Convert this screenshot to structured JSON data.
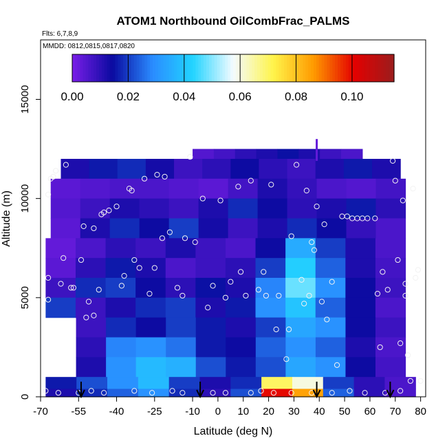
{
  "chart_data": {
    "type": "heatmap",
    "title": "ATOM1 Northbound OilCombFrac_PALMS",
    "flights_note": "Flts: 6,7,8,9",
    "dates_note": "MMDD: 0812,0815,0817,0820",
    "xlabel": "Latitude (deg N)",
    "ylabel": "Altitude (m)",
    "xlim": [
      -70,
      82
    ],
    "ylim": [
      0,
      18000
    ],
    "x_ticks": [
      "-70",
      "-55",
      "-40",
      "-25",
      "-10",
      "0",
      "10",
      "20",
      "30",
      "40",
      "50",
      "60",
      "70",
      "80"
    ],
    "x_tick_values": [
      -70,
      -55,
      -40,
      -25,
      -10,
      0,
      10,
      20,
      30,
      40,
      50,
      60,
      70,
      80
    ],
    "y_ticks": [
      "0",
      "5000",
      "10000",
      "15000"
    ],
    "y_tick_values": [
      0,
      5000,
      10000,
      15000
    ],
    "colorbar": {
      "range": [
        0,
        0.115
      ],
      "ticks": [
        "0.00",
        "0.02",
        "0.04",
        "0.06",
        "0.08",
        "0.10"
      ],
      "tick_values": [
        0,
        0.02,
        0.04,
        0.06,
        0.08,
        0.1
      ],
      "colors": [
        "#7a1ee8",
        "#0a0aa0",
        "#2a8cff",
        "#22d4ff",
        "#f4fbff",
        "#fff44a",
        "#ff9a00",
        "#e40000",
        "#9b1d1d"
      ]
    },
    "field_rows": [
      {
        "alt_range": [
          12000,
          12500
        ],
        "lat_range": [
          -10,
          57
        ],
        "values": [
          0.005,
          0.007,
          0.01,
          0.012,
          0.015,
          0.012,
          0.008,
          0.006
        ]
      },
      {
        "alt_range": [
          11000,
          12000
        ],
        "lat_range": [
          -62,
          72
        ],
        "values": [
          0.012,
          0.016,
          0.018,
          0.013,
          0.008,
          0.01,
          0.014,
          0.01,
          0.008,
          0.012,
          0.016,
          0.012
        ]
      },
      {
        "alt_range": [
          10000,
          11000
        ],
        "lat_range": [
          -66,
          74
        ],
        "values": [
          0.004,
          0.005,
          0.006,
          0.006,
          0.005,
          0.004,
          0.007,
          0.012,
          0.009,
          0.006,
          0.005,
          0.007
        ]
      },
      {
        "alt_range": [
          9000,
          10000
        ],
        "lat_range": [
          -66,
          74
        ],
        "values": [
          0.005,
          0.008,
          0.012,
          0.01,
          0.008,
          0.012,
          0.018,
          0.014,
          0.01,
          0.012,
          0.016,
          0.01
        ]
      },
      {
        "alt_range": [
          8000,
          9000
        ],
        "lat_range": [
          -66,
          74
        ],
        "values": [
          0.004,
          0.012,
          0.018,
          0.014,
          0.02,
          0.013,
          0.008,
          0.012,
          0.018,
          0.014,
          0.009,
          0.006
        ]
      },
      {
        "alt_range": [
          7000,
          8000
        ],
        "lat_range": [
          -68,
          74
        ],
        "values": [
          0.003,
          0.006,
          0.01,
          0.008,
          0.012,
          0.008,
          0.006,
          0.014,
          0.035,
          0.02,
          0.012,
          0.006
        ]
      },
      {
        "alt_range": [
          6000,
          7000
        ],
        "lat_range": [
          -68,
          74
        ],
        "values": [
          0.004,
          0.01,
          0.016,
          0.012,
          0.006,
          0.008,
          0.01,
          0.02,
          0.042,
          0.024,
          0.012,
          0.007
        ]
      },
      {
        "alt_range": [
          5000,
          6000
        ],
        "lat_range": [
          -68,
          74
        ],
        "values": [
          0.008,
          0.018,
          0.02,
          0.014,
          0.01,
          0.015,
          0.012,
          0.028,
          0.048,
          0.03,
          0.014,
          0.008
        ]
      },
      {
        "alt_range": [
          4000,
          5000
        ],
        "lat_range": [
          -68,
          74
        ],
        "values": [
          0.02,
          0.008,
          0.012,
          0.018,
          0.02,
          0.012,
          0.016,
          0.03,
          0.04,
          0.024,
          0.014,
          0.006
        ]
      },
      {
        "alt_range": [
          3000,
          4000
        ],
        "lat_range": [
          -56,
          74
        ],
        "values": [
          0.008,
          0.018,
          0.014,
          0.02,
          0.016,
          0.012,
          0.02,
          0.034,
          0.03,
          0.014,
          0.008
        ]
      },
      {
        "alt_range": [
          2000,
          3000
        ],
        "lat_range": [
          -56,
          74
        ],
        "values": [
          0.01,
          0.028,
          0.03,
          0.026,
          0.016,
          0.014,
          0.024,
          0.03,
          0.024,
          0.012,
          0.006
        ]
      },
      {
        "alt_range": [
          1000,
          2000
        ],
        "lat_range": [
          -56,
          74
        ],
        "values": [
          0.012,
          0.03,
          0.038,
          0.036,
          0.022,
          0.016,
          0.022,
          0.034,
          0.03,
          0.014,
          0.007
        ]
      },
      {
        "alt_range": [
          400,
          1000
        ],
        "lat_range": [
          -68,
          78
        ],
        "values": [
          0.016,
          0.022,
          0.03,
          0.038,
          0.02,
          0.012,
          0.018,
          0.07,
          0.06,
          0.02,
          0.01,
          0.006
        ]
      },
      {
        "alt_range": [
          0,
          400
        ],
        "lat_range": [
          -68,
          78
        ],
        "values": [
          0.012,
          0.018,
          0.024,
          0.03,
          0.018,
          0.01,
          0.022,
          0.1,
          0.085,
          0.024,
          0.01,
          0.006
        ]
      }
    ],
    "spike": {
      "lat": 39,
      "alt_range": [
        11900,
        13000
      ],
      "value": 0.003
    },
    "observations": [
      {
        "lat": -68,
        "alt": 300
      },
      {
        "lat": -67,
        "alt": 4900
      },
      {
        "lat": -67,
        "alt": 6000
      },
      {
        "lat": -67,
        "alt": 10200
      },
      {
        "lat": -66,
        "alt": 11000
      },
      {
        "lat": -65,
        "alt": 11100
      },
      {
        "lat": -64,
        "alt": 11400
      },
      {
        "lat": -62,
        "alt": 5700
      },
      {
        "lat": -61,
        "alt": 7000
      },
      {
        "lat": -60,
        "alt": 11700
      },
      {
        "lat": -58,
        "alt": 5500
      },
      {
        "lat": -57,
        "alt": 5500
      },
      {
        "lat": -55,
        "alt": 200
      },
      {
        "lat": -54,
        "alt": 6900
      },
      {
        "lat": -53,
        "alt": 8600
      },
      {
        "lat": -52,
        "alt": 4000
      },
      {
        "lat": -51,
        "alt": 4800
      },
      {
        "lat": -49,
        "alt": 8500
      },
      {
        "lat": -49,
        "alt": 4100
      },
      {
        "lat": -47,
        "alt": 5400
      },
      {
        "lat": -46,
        "alt": 9200
      },
      {
        "lat": -45,
        "alt": 9300
      },
      {
        "lat": -43,
        "alt": 9400
      },
      {
        "lat": -40,
        "alt": 9600
      },
      {
        "lat": -38,
        "alt": 5600
      },
      {
        "lat": -37,
        "alt": 6100
      },
      {
        "lat": -35,
        "alt": 10500
      },
      {
        "lat": -34,
        "alt": 10400
      },
      {
        "lat": -33,
        "alt": 6900
      },
      {
        "lat": -31,
        "alt": 6500
      },
      {
        "lat": -29,
        "alt": 11000
      },
      {
        "lat": -27,
        "alt": 5200
      },
      {
        "lat": -25,
        "alt": 6500
      },
      {
        "lat": -24,
        "alt": 11200
      },
      {
        "lat": -22,
        "alt": 8000
      },
      {
        "lat": -21,
        "alt": 11100
      },
      {
        "lat": -19,
        "alt": 8300
      },
      {
        "lat": -16,
        "alt": 5500
      },
      {
        "lat": -14,
        "alt": 5100
      },
      {
        "lat": -13,
        "alt": 8000
      },
      {
        "lat": -11,
        "alt": 12100
      },
      {
        "lat": -9,
        "alt": 7800
      },
      {
        "lat": -6,
        "alt": 10000
      },
      {
        "lat": -4,
        "alt": 4500
      },
      {
        "lat": -2,
        "alt": 5600
      },
      {
        "lat": 1,
        "alt": 9900
      },
      {
        "lat": 3,
        "alt": 5000
      },
      {
        "lat": 5,
        "alt": 5800
      },
      {
        "lat": 8,
        "alt": 10600
      },
      {
        "lat": 9,
        "alt": 6300
      },
      {
        "lat": 11,
        "alt": 5100
      },
      {
        "lat": 13,
        "alt": 10900
      },
      {
        "lat": 16,
        "alt": 5400
      },
      {
        "lat": 18,
        "alt": 6300
      },
      {
        "lat": 19,
        "alt": 5100
      },
      {
        "lat": 21,
        "alt": 10700
      },
      {
        "lat": 23,
        "alt": 3400
      },
      {
        "lat": 24,
        "alt": 5100
      },
      {
        "lat": 27,
        "alt": 1900
      },
      {
        "lat": 28,
        "alt": 3400
      },
      {
        "lat": 29,
        "alt": 8100
      },
      {
        "lat": 31,
        "alt": 11700
      },
      {
        "lat": 33,
        "alt": 5900
      },
      {
        "lat": 34,
        "alt": 4700
      },
      {
        "lat": 35,
        "alt": 10400
      },
      {
        "lat": 36,
        "alt": 5100
      },
      {
        "lat": 37,
        "alt": 7800
      },
      {
        "lat": 38,
        "alt": 7400
      },
      {
        "lat": 39,
        "alt": 9600
      },
      {
        "lat": 41,
        "alt": 4800
      },
      {
        "lat": 42,
        "alt": 8700
      },
      {
        "lat": 43,
        "alt": 3900
      },
      {
        "lat": 45,
        "alt": 5800
      },
      {
        "lat": 47,
        "alt": 1600
      },
      {
        "lat": 49,
        "alt": 9100
      },
      {
        "lat": 51,
        "alt": 9100
      },
      {
        "lat": 53,
        "alt": 9000
      },
      {
        "lat": 55,
        "alt": 9000
      },
      {
        "lat": 57,
        "alt": 9000
      },
      {
        "lat": 59,
        "alt": 9000
      },
      {
        "lat": 62,
        "alt": 9000
      },
      {
        "lat": 63,
        "alt": 5200
      },
      {
        "lat": 64,
        "alt": 2500
      },
      {
        "lat": 65,
        "alt": 6300
      },
      {
        "lat": 67,
        "alt": 5400
      },
      {
        "lat": 69,
        "alt": 11900
      },
      {
        "lat": 70,
        "alt": 10900
      },
      {
        "lat": 71,
        "alt": 6900
      },
      {
        "lat": 72,
        "alt": 2700
      },
      {
        "lat": 73,
        "alt": 9900
      },
      {
        "lat": 74,
        "alt": 5700
      },
      {
        "lat": 74,
        "alt": 5100
      },
      {
        "lat": 75,
        "alt": 2100
      },
      {
        "lat": 76,
        "alt": 800
      },
      {
        "lat": 77,
        "alt": 10500
      },
      {
        "lat": 78,
        "alt": 6000
      },
      {
        "lat": 79,
        "alt": 6400
      },
      {
        "lat": 80,
        "alt": 800
      },
      {
        "lat": -63,
        "alt": 200
      },
      {
        "lat": -50,
        "alt": 300
      },
      {
        "lat": -45,
        "alt": 200
      },
      {
        "lat": -33,
        "alt": 300
      },
      {
        "lat": -26,
        "alt": 200
      },
      {
        "lat": -18,
        "alt": 300
      },
      {
        "lat": -14,
        "alt": 200
      },
      {
        "lat": -2,
        "alt": 200
      },
      {
        "lat": 3,
        "alt": 200
      },
      {
        "lat": 13,
        "alt": 200
      },
      {
        "lat": 17,
        "alt": 300
      },
      {
        "lat": 22,
        "alt": 200
      },
      {
        "lat": 29,
        "alt": 200
      },
      {
        "lat": 37,
        "alt": 200
      },
      {
        "lat": 45,
        "alt": 200
      },
      {
        "lat": 52,
        "alt": 300
      },
      {
        "lat": 58,
        "alt": 200
      },
      {
        "lat": 66,
        "alt": 200
      },
      {
        "lat": 72,
        "alt": 300
      }
    ],
    "arrow_latitudes": [
      -54,
      -7,
      39,
      68
    ]
  }
}
